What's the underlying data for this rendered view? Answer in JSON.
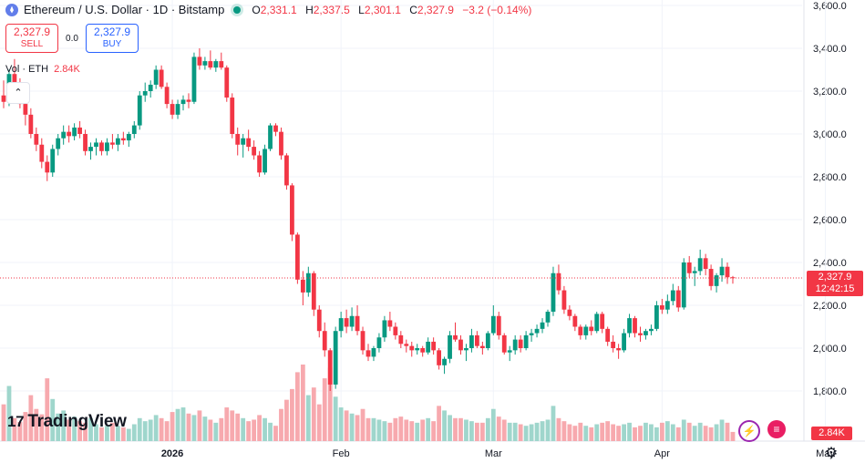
{
  "header": {
    "title": "Ethereum / U.S. Dollar · 1D · Bitstamp",
    "ohlc": [
      {
        "k": "O",
        "v": "2,331.1"
      },
      {
        "k": "H",
        "v": "2,337.5"
      },
      {
        "k": "L",
        "v": "2,301.1"
      },
      {
        "k": "C",
        "v": "2,327.9"
      }
    ],
    "change": "−3.2 (−0.14%)"
  },
  "trade": {
    "sell_price": "2,327.9",
    "sell_label": "SELL",
    "spread": "0.0",
    "buy_price": "2,327.9",
    "buy_label": "BUY"
  },
  "volume_legend": {
    "label": "Vol · ETH",
    "value": "2.84K"
  },
  "price_tag": {
    "price": "2,327.9",
    "countdown": "12:42:15"
  },
  "volume_tag": "2.84K",
  "logo": {
    "mark": "17",
    "text": "TradingView"
  },
  "colors": {
    "up": "#089981",
    "down": "#f23645",
    "up_vol": "#9fd6cc",
    "down_vol": "#f7a9ae",
    "grid": "#f0f3fa"
  },
  "chart_data": {
    "type": "candlestick",
    "y_ticks": [
      "3,600.0",
      "3,400.0",
      "3,200.0",
      "3,000.0",
      "2,800.0",
      "2,600.0",
      "2,400.0",
      "2,200.0",
      "2,000.0",
      "1,800.0"
    ],
    "y_tick_values": [
      3600,
      3400,
      3200,
      3000,
      2800,
      2600,
      2400,
      2200,
      2000,
      1800
    ],
    "ylim": [
      1780,
      3620
    ],
    "x_labels": [
      {
        "label": "2026",
        "date": "2026-01-01"
      },
      {
        "label": "Feb",
        "date": "2026-02-01"
      },
      {
        "label": "Mar",
        "date": "2026-03-01"
      },
      {
        "label": "Apr",
        "date": "2026-04-01"
      },
      {
        "label": "May",
        "date": "2026-05-01"
      }
    ],
    "last_price": 2327.9,
    "start_date": "2025-12-01",
    "candles": [
      [
        3180,
        3250,
        3120,
        3150
      ],
      [
        3150,
        3300,
        3130,
        3280
      ],
      [
        3280,
        3350,
        3200,
        3220
      ],
      [
        3220,
        3260,
        3120,
        3140
      ],
      [
        3140,
        3180,
        3040,
        3090
      ],
      [
        3090,
        3120,
        2980,
        3000
      ],
      [
        3000,
        3030,
        2920,
        2950
      ],
      [
        2950,
        2980,
        2840,
        2870
      ],
      [
        2870,
        2900,
        2780,
        2820
      ],
      [
        2820,
        2950,
        2800,
        2930
      ],
      [
        2930,
        3000,
        2900,
        2980
      ],
      [
        2980,
        3040,
        2950,
        3010
      ],
      [
        3010,
        3040,
        2960,
        2990
      ],
      [
        2990,
        3050,
        2970,
        3030
      ],
      [
        3030,
        3060,
        2980,
        3000
      ],
      [
        3000,
        3020,
        2900,
        2920
      ],
      [
        2920,
        2960,
        2880,
        2940
      ],
      [
        2940,
        2980,
        2900,
        2960
      ],
      [
        2960,
        2970,
        2900,
        2920
      ],
      [
        2920,
        2980,
        2900,
        2960
      ],
      [
        2960,
        3000,
        2930,
        2950
      ],
      [
        2950,
        3000,
        2920,
        2980
      ],
      [
        2980,
        3010,
        2950,
        2970
      ],
      [
        2970,
        3010,
        2940,
        3000
      ],
      [
        3000,
        3060,
        2980,
        3040
      ],
      [
        3040,
        3200,
        3020,
        3180
      ],
      [
        3180,
        3240,
        3150,
        3200
      ],
      [
        3200,
        3250,
        3170,
        3230
      ],
      [
        3230,
        3320,
        3210,
        3300
      ],
      [
        3300,
        3320,
        3210,
        3220
      ],
      [
        3220,
        3240,
        3120,
        3140
      ],
      [
        3140,
        3160,
        3070,
        3090
      ],
      [
        3090,
        3160,
        3070,
        3140
      ],
      [
        3140,
        3180,
        3110,
        3160
      ],
      [
        3160,
        3190,
        3120,
        3150
      ],
      [
        3150,
        3380,
        3140,
        3360
      ],
      [
        3360,
        3400,
        3300,
        3320
      ],
      [
        3320,
        3360,
        3300,
        3340
      ],
      [
        3340,
        3390,
        3300,
        3310
      ],
      [
        3310,
        3350,
        3290,
        3340
      ],
      [
        3340,
        3380,
        3300,
        3310
      ],
      [
        3310,
        3320,
        3150,
        3170
      ],
      [
        3170,
        3190,
        2980,
        3000
      ],
      [
        3000,
        3030,
        2900,
        2950
      ],
      [
        2950,
        3000,
        2890,
        2980
      ],
      [
        2980,
        3020,
        2920,
        2940
      ],
      [
        2940,
        2970,
        2880,
        2900
      ],
      [
        2900,
        2920,
        2800,
        2820
      ],
      [
        2820,
        2950,
        2810,
        2930
      ],
      [
        2930,
        3050,
        2920,
        3040
      ],
      [
        3040,
        3050,
        2990,
        3010
      ],
      [
        3010,
        3030,
        2880,
        2900
      ],
      [
        2900,
        2910,
        2740,
        2760
      ],
      [
        2760,
        2770,
        2500,
        2530
      ],
      [
        2530,
        2540,
        2300,
        2320
      ],
      [
        2320,
        2360,
        2200,
        2260
      ],
      [
        2260,
        2380,
        2240,
        2350
      ],
      [
        2350,
        2360,
        2150,
        2180
      ],
      [
        2180,
        2200,
        2050,
        2080
      ],
      [
        2080,
        2120,
        1960,
        1990
      ],
      [
        1990,
        2000,
        1800,
        1830
      ],
      [
        1830,
        2100,
        1810,
        2080
      ],
      [
        2080,
        2170,
        2050,
        2140
      ],
      [
        2140,
        2180,
        2070,
        2100
      ],
      [
        2100,
        2190,
        2080,
        2150
      ],
      [
        2150,
        2200,
        2060,
        2080
      ],
      [
        2080,
        2100,
        1970,
        1990
      ],
      [
        1990,
        2020,
        1940,
        1960
      ],
      [
        1960,
        2010,
        1940,
        2000
      ],
      [
        2000,
        2070,
        1980,
        2050
      ],
      [
        2050,
        2150,
        2030,
        2130
      ],
      [
        2130,
        2170,
        2080,
        2100
      ],
      [
        2100,
        2120,
        2040,
        2060
      ],
      [
        2060,
        2080,
        2000,
        2020
      ],
      [
        2020,
        2040,
        1980,
        2010
      ],
      [
        2010,
        2030,
        1960,
        1990
      ],
      [
        1990,
        2020,
        1970,
        2000
      ],
      [
        2000,
        2010,
        1960,
        1980
      ],
      [
        1980,
        2050,
        1970,
        2030
      ],
      [
        2030,
        2050,
        1970,
        1990
      ],
      [
        1990,
        2000,
        1900,
        1920
      ],
      [
        1920,
        1960,
        1880,
        1950
      ],
      [
        1950,
        2080,
        1930,
        2060
      ],
      [
        2060,
        2120,
        2030,
        2040
      ],
      [
        2040,
        2060,
        1970,
        1990
      ],
      [
        1990,
        2020,
        1940,
        2000
      ],
      [
        2000,
        2090,
        1980,
        2060
      ],
      [
        2060,
        2080,
        2000,
        2010
      ],
      [
        2010,
        2030,
        1970,
        2000
      ],
      [
        2000,
        2080,
        1990,
        2070
      ],
      [
        2070,
        2200,
        2060,
        2150
      ],
      [
        2150,
        2170,
        2040,
        2060
      ],
      [
        2060,
        2070,
        1970,
        1980
      ],
      [
        1980,
        2010,
        1940,
        1990
      ],
      [
        1990,
        2060,
        1970,
        2040
      ],
      [
        2040,
        2060,
        1980,
        2000
      ],
      [
        2000,
        2080,
        1990,
        2060
      ],
      [
        2060,
        2090,
        2030,
        2070
      ],
      [
        2070,
        2110,
        2050,
        2090
      ],
      [
        2090,
        2140,
        2070,
        2120
      ],
      [
        2120,
        2180,
        2100,
        2170
      ],
      [
        2170,
        2380,
        2150,
        2350
      ],
      [
        2350,
        2390,
        2250,
        2270
      ],
      [
        2270,
        2290,
        2160,
        2180
      ],
      [
        2180,
        2200,
        2130,
        2150
      ],
      [
        2150,
        2160,
        2080,
        2100
      ],
      [
        2100,
        2110,
        2040,
        2060
      ],
      [
        2060,
        2110,
        2040,
        2100
      ],
      [
        2100,
        2130,
        2060,
        2080
      ],
      [
        2080,
        2170,
        2070,
        2160
      ],
      [
        2160,
        2170,
        2070,
        2090
      ],
      [
        2090,
        2100,
        2010,
        2030
      ],
      [
        2030,
        2060,
        1980,
        2000
      ],
      [
        2000,
        2020,
        1950,
        1990
      ],
      [
        1990,
        2090,
        1980,
        2070
      ],
      [
        2070,
        2160,
        2050,
        2140
      ],
      [
        2140,
        2150,
        2050,
        2070
      ],
      [
        2070,
        2100,
        2030,
        2060
      ],
      [
        2060,
        2090,
        2040,
        2080
      ],
      [
        2080,
        2110,
        2060,
        2090
      ],
      [
        2090,
        2220,
        2080,
        2200
      ],
      [
        2200,
        2230,
        2160,
        2180
      ],
      [
        2180,
        2250,
        2160,
        2220
      ],
      [
        2220,
        2300,
        2200,
        2270
      ],
      [
        2270,
        2290,
        2170,
        2190
      ],
      [
        2190,
        2420,
        2180,
        2400
      ],
      [
        2400,
        2430,
        2330,
        2350
      ],
      [
        2350,
        2380,
        2290,
        2360
      ],
      [
        2360,
        2460,
        2340,
        2420
      ],
      [
        2420,
        2440,
        2340,
        2370
      ],
      [
        2370,
        2390,
        2270,
        2290
      ],
      [
        2290,
        2350,
        2260,
        2340
      ],
      [
        2340,
        2420,
        2310,
        2380
      ],
      [
        2380,
        2400,
        2300,
        2331
      ],
      [
        2331,
        2337,
        2301,
        2328
      ]
    ],
    "volumes": [
      48,
      72,
      30,
      25,
      38,
      60,
      42,
      35,
      82,
      55,
      36,
      40,
      28,
      32,
      26,
      24,
      30,
      22,
      18,
      20,
      24,
      20,
      18,
      16,
      22,
      30,
      26,
      28,
      34,
      30,
      26,
      38,
      42,
      44,
      36,
      34,
      40,
      32,
      28,
      24,
      30,
      44,
      40,
      36,
      30,
      26,
      28,
      34,
      30,
      24,
      20,
      42,
      54,
      68,
      90,
      100,
      60,
      70,
      48,
      82,
      96,
      58,
      44,
      40,
      36,
      34,
      42,
      30,
      30,
      28,
      26,
      24,
      30,
      32,
      28,
      26,
      24,
      28,
      30,
      26,
      46,
      40,
      34,
      30,
      30,
      28,
      26,
      24,
      24,
      30,
      42,
      32,
      28,
      24,
      24,
      22,
      20,
      22,
      24,
      26,
      28,
      46,
      30,
      26,
      22,
      20,
      24,
      20,
      18,
      22,
      24,
      26,
      22,
      20,
      22,
      24,
      18,
      20,
      24,
      22,
      18,
      24,
      26,
      22,
      18,
      28,
      24,
      20,
      24,
      20,
      18,
      22,
      28,
      24,
      12
    ]
  }
}
